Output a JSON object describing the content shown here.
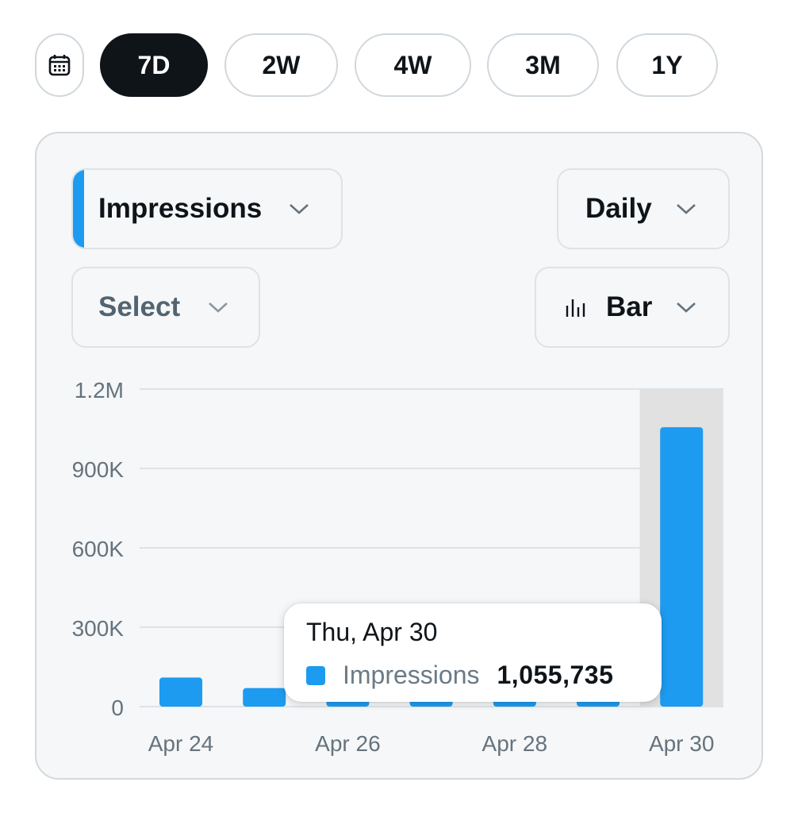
{
  "range_selector": {
    "calendar_icon": "calendar-icon",
    "options": [
      "7D",
      "2W",
      "4W",
      "3M",
      "1Y"
    ],
    "selected": "7D"
  },
  "controls": {
    "metric": "Impressions",
    "interval": "Daily",
    "compare": "Select",
    "chart_type": "Bar",
    "chart_type_icon": "bar-chart-icon",
    "chevron_icon": "chevron-down-icon"
  },
  "colors": {
    "accent": "#1d9bf0",
    "bar": "#1d9bf0",
    "active_pill": "#0f1419",
    "highlight_band": "#e1e1e1",
    "gridline": "#dde3e8",
    "axis_text": "#66737d"
  },
  "chart_data": {
    "type": "bar",
    "categories": [
      "Apr 24",
      "Apr 25",
      "Apr 26",
      "Apr 27",
      "Apr 28",
      "Apr 29",
      "Apr 30"
    ],
    "series": [
      {
        "name": "Impressions",
        "values": [
          110000,
          70000,
          40000,
          35000,
          35000,
          35000,
          1055735
        ]
      }
    ],
    "x_tick_labels": [
      "Apr 24",
      "Apr 26",
      "Apr 28",
      "Apr 30"
    ],
    "y_ticks": [
      0,
      300000,
      600000,
      900000,
      1200000
    ],
    "y_tick_labels": [
      "0",
      "300K",
      "600K",
      "900K",
      "1.2M"
    ],
    "ylim": [
      0,
      1200000
    ],
    "grid": true,
    "highlighted_category": "Apr 30",
    "tooltip": {
      "date": "Thu, Apr 30",
      "series": "Impressions",
      "value": "1,055,735"
    }
  }
}
